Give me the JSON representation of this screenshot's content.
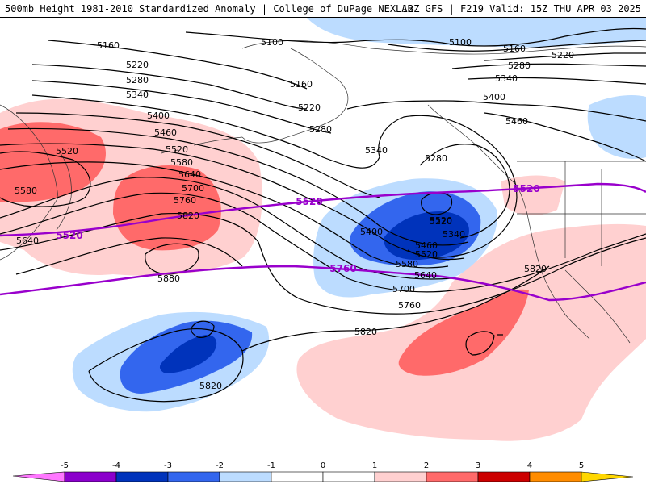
{
  "header": {
    "title_left": "500mb Height 1981-2010 Standardized Anomaly | College of DuPage NEXLAB",
    "title_right": "12Z GFS | F219 Valid: 15Z THU APR 03 2025"
  },
  "colors": {
    "neg5": "#ff77ff",
    "neg4": "#8b00cc",
    "neg3": "#0033bb",
    "neg2": "#3366ee",
    "neg1": "#bcdcff",
    "pos1": "#ffd0d0",
    "pos2": "#ff6a6a",
    "pos3": "#cc0000",
    "pos4": "#ff8c00",
    "pos5": "#ffd700",
    "contour": "#000000",
    "climo_contour": "#9900cc"
  },
  "colorbar": {
    "ticks": [
      "-5",
      "-4",
      "-3",
      "-2",
      "-1",
      "0",
      "1",
      "2",
      "3",
      "4",
      "5"
    ]
  },
  "contour_labels": {
    "c5100": "5100",
    "c5160": "5160",
    "c5220": "5220",
    "c5280": "5280",
    "c5340": "5340",
    "c5400": "5400",
    "c5460": "5460",
    "c5520": "5520",
    "c5580": "5580",
    "c5640": "5640",
    "c5700": "5700",
    "c5760": "5760",
    "c5820": "5820",
    "c5880": "5880"
  },
  "climo_labels": {
    "c5520": "5520",
    "c5760": "5760"
  }
}
